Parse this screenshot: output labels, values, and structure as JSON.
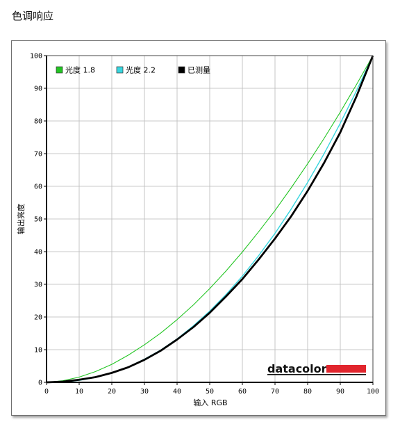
{
  "page": {
    "title": "色调响应"
  },
  "brand": {
    "logo_text": "datacolor",
    "logo_color": "#e1252d"
  },
  "colors": {
    "gamma18": "#22c522",
    "gamma22": "#38d6df",
    "measured": "#000000",
    "grid": "#b8b8b8",
    "axis": "#000000"
  },
  "chart_data": {
    "type": "line",
    "title": "",
    "xlabel": "输入 RGB",
    "ylabel": "输出亮度",
    "xlim": [
      0,
      100
    ],
    "ylim": [
      0,
      100
    ],
    "x_ticks": [
      0,
      10,
      20,
      30,
      40,
      50,
      60,
      70,
      80,
      90,
      100
    ],
    "y_ticks": [
      0,
      10,
      20,
      30,
      40,
      50,
      60,
      70,
      80,
      90,
      100
    ],
    "grid": true,
    "legend_position": "top-left",
    "x": [
      0,
      5,
      10,
      15,
      20,
      25,
      30,
      35,
      40,
      45,
      50,
      55,
      60,
      65,
      70,
      75,
      80,
      85,
      90,
      95,
      100
    ],
    "series": [
      {
        "name": "光度 1.8",
        "color": "#22c522",
        "values": [
          0,
          0.5,
          1.6,
          3.3,
          5.5,
          8.3,
          11.5,
          15.1,
          19.2,
          23.7,
          28.7,
          34.1,
          39.9,
          46.1,
          52.6,
          59.6,
          66.9,
          74.6,
          82.7,
          91.2,
          100
        ]
      },
      {
        "name": "光度 2.2",
        "color": "#38d6df",
        "values": [
          0,
          0.1,
          0.6,
          1.5,
          2.9,
          4.7,
          7.1,
          9.9,
          13.3,
          17.3,
          21.8,
          26.9,
          32.5,
          38.8,
          45.6,
          53.1,
          61.2,
          69.9,
          79.3,
          89.3,
          100
        ]
      },
      {
        "name": "已测量",
        "color": "#000000",
        "values": [
          0,
          0.2,
          0.8,
          1.6,
          2.9,
          4.6,
          6.9,
          9.7,
          13.1,
          16.9,
          21.3,
          26.3,
          31.6,
          37.6,
          44.0,
          50.9,
          58.6,
          67.1,
          76.5,
          87.6,
          100
        ]
      }
    ]
  }
}
